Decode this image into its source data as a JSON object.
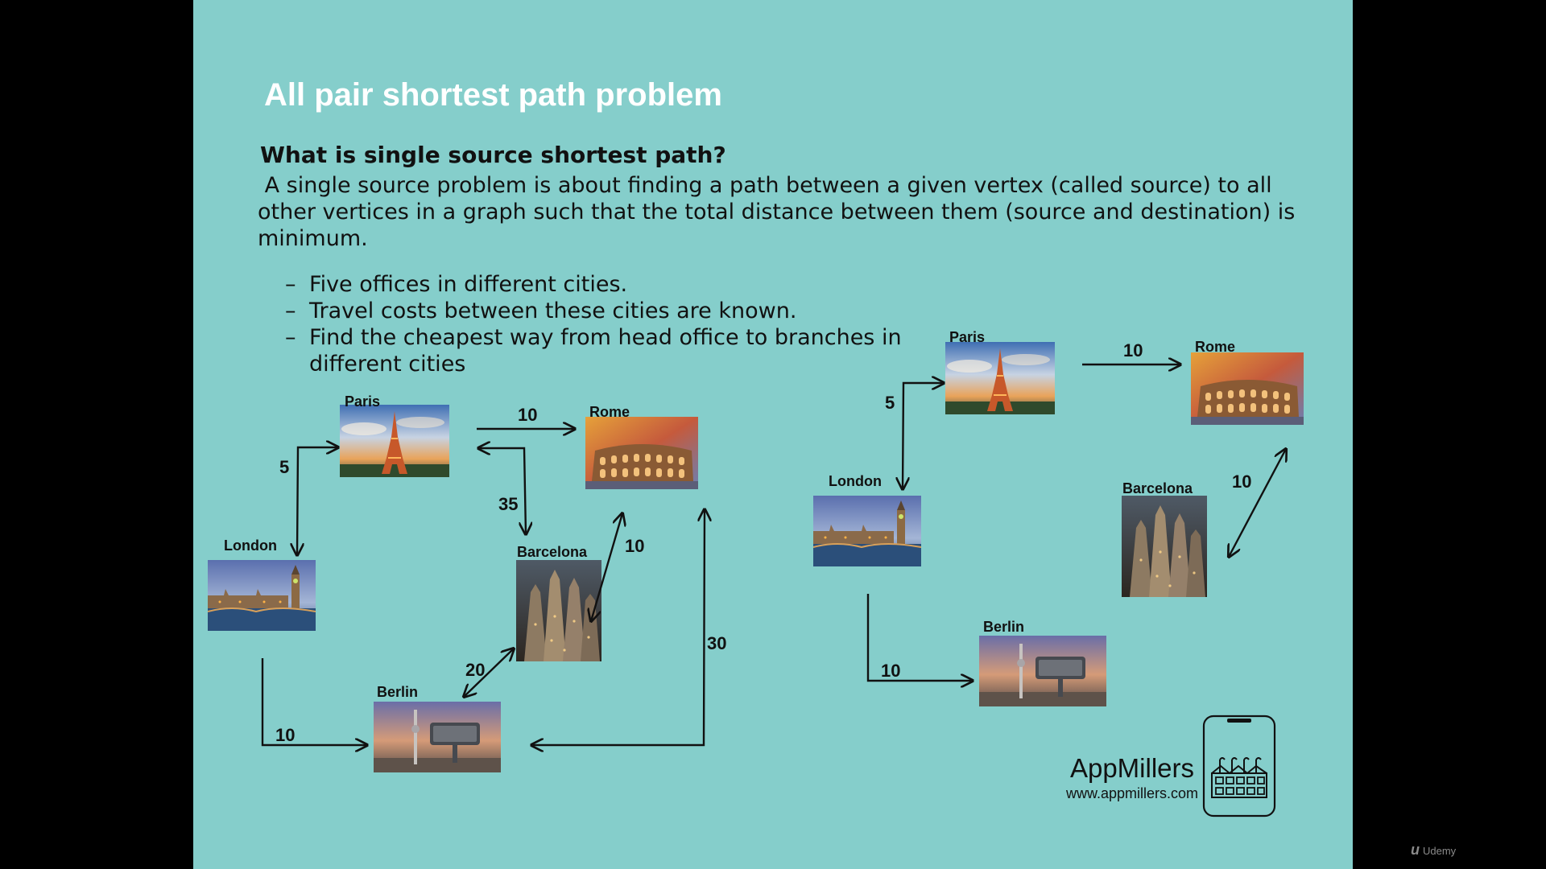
{
  "slide": {
    "title": "All pair shortest path problem",
    "heading": "What is single source shortest path?",
    "paragraph": " A single source problem is about finding a path between a given vertex (called source) to all other vertices in a graph such that the total distance between them (source and destination) is minimum.",
    "bullets": [
      "Five offices in different cities.",
      "Travel costs between these cities are known.",
      "Find the cheapest way from head office to branches in different cities"
    ],
    "background_color": "#85CECB"
  },
  "diagrams": {
    "full_graph": {
      "nodes": [
        "Paris",
        "Rome",
        "London",
        "Barcelona",
        "Berlin"
      ],
      "edge_weights": [
        "10",
        "5",
        "35",
        "10",
        "20",
        "30",
        "10"
      ],
      "edges": [
        {
          "from": "Paris",
          "to": "Rome",
          "weight": "10"
        },
        {
          "from": "Paris",
          "to": "London",
          "weight": "5"
        },
        {
          "from": "Paris",
          "to": "Barcelona",
          "weight": "35"
        },
        {
          "from": "Barcelona",
          "to": "Rome",
          "weight": "10"
        },
        {
          "from": "Berlin",
          "to": "Barcelona",
          "weight": "20"
        },
        {
          "from": "Berlin",
          "to": "Rome",
          "weight": "30"
        },
        {
          "from": "London",
          "to": "Berlin",
          "weight": "10"
        }
      ]
    },
    "shortest_path_tree": {
      "nodes": [
        "Paris",
        "Rome",
        "London",
        "Barcelona",
        "Berlin"
      ],
      "edge_weights": [
        "10",
        "5",
        "10",
        "10"
      ],
      "edges": [
        {
          "from": "Paris",
          "to": "Rome",
          "weight": "10"
        },
        {
          "from": "Paris",
          "to": "London",
          "weight": "5"
        },
        {
          "from": "Rome",
          "to": "Barcelona",
          "weight": "10"
        },
        {
          "from": "London",
          "to": "Berlin",
          "weight": "10"
        }
      ]
    }
  },
  "brand": {
    "name": "AppMillers",
    "url": "www.appmillers.com",
    "icon": "phone-factory-icon"
  },
  "watermark": {
    "label": "Udemy"
  }
}
